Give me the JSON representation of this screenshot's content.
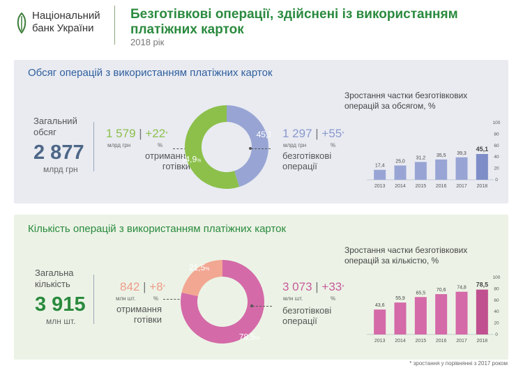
{
  "header": {
    "bank_name_line1": "Національний",
    "bank_name_line2": "банк України",
    "title_line1": "Безготівкові операції, здійснені із використанням",
    "title_line2": "платіжних карток",
    "year": "2018 рік"
  },
  "colors": {
    "brand_green": "#2a8a3e",
    "blue_title": "#2f5f9e",
    "green_part": "#8cc04b",
    "blue_part": "#98a5d4",
    "pink_part": "#d46aa8",
    "salmon_part": "#f2a793",
    "total_volume": "#4d6787",
    "total_count": "#2a8a3e"
  },
  "volume": {
    "title": "Обсяг операцій з використанням платіжних карток",
    "total_label_line1": "Загальний",
    "total_label_line2": "обсяг",
    "total_value": "2 877",
    "total_unit": "млрд грн",
    "cash": {
      "value": "1 579",
      "growth": "+22",
      "asterisk": "*",
      "unit": "млрд грн",
      "pct_unit": "%",
      "label_line1": "отримання",
      "label_line2": "готівки"
    },
    "noncash": {
      "value": "1 297",
      "growth": "+55",
      "asterisk": "*",
      "unit": "млрд грн",
      "pct_unit": "%",
      "label_line1": "безготівкові",
      "label_line2": "операції"
    },
    "chart_title_line1": "Зростання частки безготівкових",
    "chart_title_line2": "операцій за обсягом, %"
  },
  "count": {
    "title": "Кількість операцій з використанням платіжних карток",
    "total_label_line1": "Загальна",
    "total_label_line2": "кількість",
    "total_value": "3 915",
    "total_unit": "млн шт.",
    "cash": {
      "value": "842",
      "growth": "+8",
      "asterisk": "*",
      "unit": "млн шт.",
      "pct_unit": "%",
      "label_line1": "отримання",
      "label_line2": "готівки"
    },
    "noncash": {
      "value": "3 073",
      "growth": "+33",
      "asterisk": "*",
      "unit": "млн шт.",
      "pct_unit": "%",
      "label_line1": "безготівкові",
      "label_line2": "операції"
    },
    "chart_title_line1": "Зростання частки безготівкових",
    "chart_title_line2": "операцій за кількістю, %"
  },
  "footnote": "* зростання у порівнянні з 2017 роком",
  "chart_data": [
    {
      "type": "pie",
      "categories": [
        "безготівкові операції",
        "отримання готівки"
      ],
      "values": [
        45.1,
        54.9
      ],
      "labels": [
        "45,1",
        "54,9"
      ],
      "unit": "%",
      "colors": [
        "#98a5d4",
        "#8cc04b"
      ]
    },
    {
      "type": "bar",
      "title": "Зростання частки безготівкових операцій за обсягом, %",
      "categories": [
        "2013",
        "2014",
        "2015",
        "2016",
        "2017",
        "2018"
      ],
      "values": [
        17.4,
        25.0,
        31.2,
        35.5,
        39.3,
        45.1
      ],
      "labels": [
        "17,4",
        "25,0",
        "31,2",
        "35,5",
        "39,3",
        "45,1"
      ],
      "yticks": [
        "100",
        "80",
        "60",
        "40",
        "20",
        "0"
      ],
      "ylim": [
        0,
        100
      ],
      "color": "#98a5d4",
      "highlight_color": "#7e8dc7"
    },
    {
      "type": "pie",
      "categories": [
        "безготівкові операції",
        "отримання готівки"
      ],
      "values": [
        78.5,
        21.5
      ],
      "labels": [
        "78,5",
        "21,5"
      ],
      "unit": "%",
      "colors": [
        "#d46aa8",
        "#f2a793"
      ]
    },
    {
      "type": "bar",
      "title": "Зростання частки безготівкових операцій за кількістю, %",
      "categories": [
        "2013",
        "2014",
        "2015",
        "2016",
        "2017",
        "2018"
      ],
      "values": [
        43.6,
        55.9,
        65.5,
        70.6,
        74.8,
        78.5
      ],
      "labels": [
        "43,6",
        "55,9",
        "65,5",
        "70,6",
        "74,8",
        "78,5"
      ],
      "yticks": [
        "100",
        "80",
        "60",
        "40",
        "20",
        "0"
      ],
      "ylim": [
        0,
        100
      ],
      "color": "#d46aa8",
      "highlight_color": "#c0508f"
    }
  ]
}
